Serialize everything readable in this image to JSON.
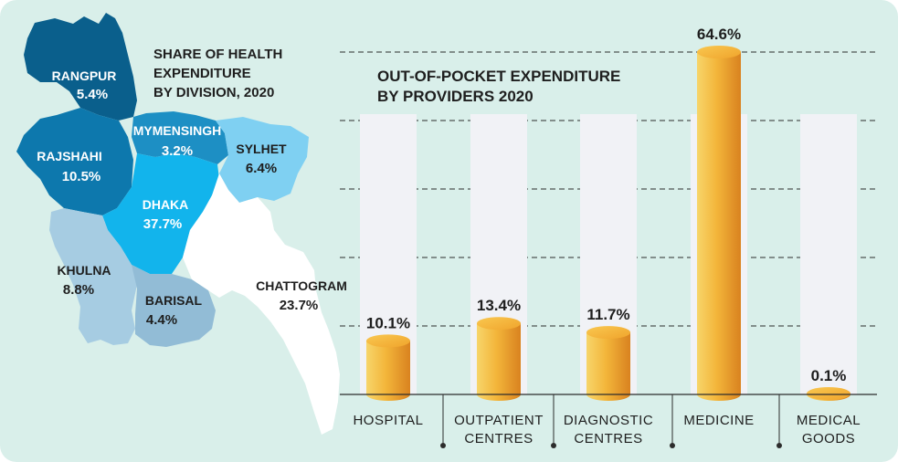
{
  "map": {
    "title_lines": [
      "SHARE OF HEALTH",
      "EXPENDITURE",
      "BY DIVISION, 2020"
    ],
    "divisions": [
      {
        "name": "RANGPUR",
        "value": "5.4%",
        "color": "#0a5f8c"
      },
      {
        "name": "MYMENSINGH",
        "value": "3.2%",
        "color": "#1d8fc4"
      },
      {
        "name": "RAJSHAHI",
        "value": "10.5%",
        "color": "#0d78ad"
      },
      {
        "name": "SYLHET",
        "value": "6.4%",
        "color": "#7fd0f2"
      },
      {
        "name": "DHAKA",
        "value": "37.7%",
        "color": "#12b4ec"
      },
      {
        "name": "KHULNA",
        "value": "8.8%",
        "color": "#a6cce2"
      },
      {
        "name": "BARISAL",
        "value": "4.4%",
        "color": "#92bcd6"
      },
      {
        "name": "CHATTOGRAM",
        "value": "23.7%",
        "color": "#ffffff"
      }
    ]
  },
  "chart_data": {
    "type": "bar",
    "title": "OUT-OF-POCKET EXPENDITURE BY PROVIDERS 2020",
    "title_lines": [
      "OUT-OF-POCKET EXPENDITURE",
      "BY PROVIDERS 2020"
    ],
    "categories": [
      "HOSPITAL",
      "OUTPATIENT CENTRES",
      "DIAGNOSTIC CENTRES",
      "MEDICINE",
      "MEDICAL GOODS"
    ],
    "category_lines": [
      [
        "HOSPITAL"
      ],
      [
        "OUTPATIENT",
        "CENTRES"
      ],
      [
        "DIAGNOSTIC",
        "CENTRES"
      ],
      [
        "MEDICINE"
      ],
      [
        "MEDICAL",
        "GOODS"
      ]
    ],
    "values": [
      10.1,
      13.4,
      11.7,
      64.6,
      0.1
    ],
    "value_labels": [
      "10.1%",
      "13.4%",
      "11.7%",
      "64.6%",
      "0.1%"
    ],
    "ylim": [
      0,
      64.6
    ],
    "grid": true,
    "bar_color": "#f2b73a"
  }
}
